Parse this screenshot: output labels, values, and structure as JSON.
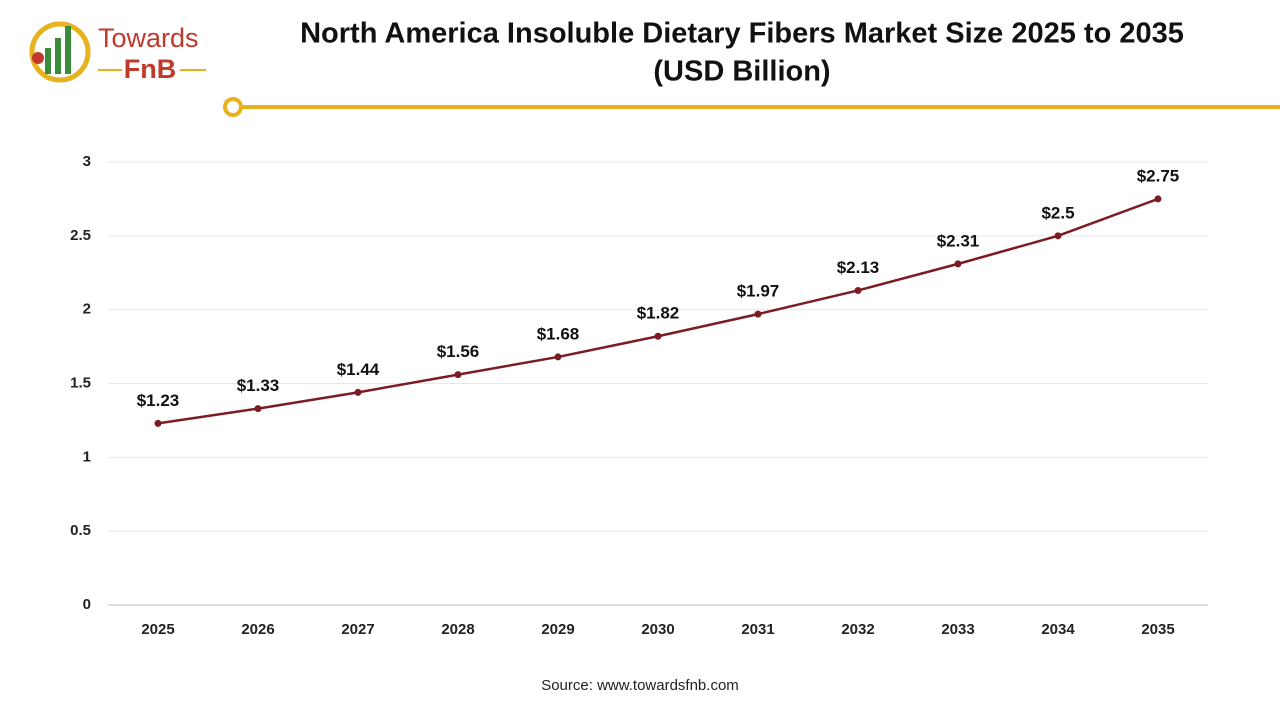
{
  "logo": {
    "line1": "Towards",
    "line2": "FnB"
  },
  "chart_data": {
    "type": "line",
    "title": [
      "North America Insoluble Dietary Fibers Market Size 2025 to 2035",
      "(USD Billion)"
    ],
    "categories": [
      "2025",
      "2026",
      "2027",
      "2028",
      "2029",
      "2030",
      "2031",
      "2032",
      "2033",
      "2034",
      "2035"
    ],
    "values": [
      1.23,
      1.33,
      1.44,
      1.56,
      1.68,
      1.82,
      1.97,
      2.13,
      2.31,
      2.5,
      2.75
    ],
    "value_labels": [
      "$1.23",
      "$1.33",
      "$1.44",
      "$1.56",
      "$1.68",
      "$1.82",
      "$1.97",
      "$2.13",
      "$2.31",
      "$2.5",
      "$2.75"
    ],
    "color": "#7b1c24",
    "ylim": [
      0,
      3
    ],
    "yticks": [
      0,
      0.5,
      1,
      1.5,
      2,
      2.5,
      3
    ],
    "grid": true,
    "source": "Source: www.towardsfnb.com"
  }
}
